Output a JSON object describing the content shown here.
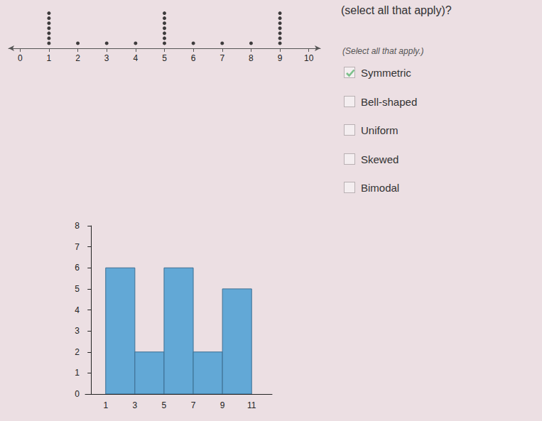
{
  "question": "(select all that apply)?",
  "instruction": "(Select all that apply.)",
  "choices": [
    "Symmetric",
    "Bell-shaped",
    "Uniform",
    "Skewed",
    "Bimodal"
  ],
  "checked": [
    "Symmetric"
  ],
  "chart_data": [
    {
      "type": "dot",
      "x": [
        1,
        2,
        3,
        4,
        5,
        6,
        7,
        8,
        9
      ],
      "values": [
        7,
        1,
        1,
        1,
        7,
        1,
        1,
        1,
        7
      ],
      "xlim": [
        -0.4,
        10.4
      ],
      "xticks": [
        0,
        1,
        2,
        3,
        4,
        5,
        6,
        7,
        8,
        9,
        10
      ],
      "color": "#111111",
      "tick_labels": "x",
      "grid": false
    },
    {
      "type": "histogram",
      "bins": [
        1,
        3,
        5,
        7,
        9,
        11
      ],
      "values": [
        6,
        2,
        6,
        2,
        5
      ],
      "xlim": [
        -0.4,
        12.4
      ],
      "xticks": [
        1,
        3,
        5,
        7,
        9,
        11
      ],
      "ylim": [
        0,
        8
      ],
      "yticks": [
        0,
        1,
        2,
        3,
        4,
        5,
        6,
        7,
        8
      ],
      "color": "#62a8d6",
      "grid": false
    }
  ]
}
